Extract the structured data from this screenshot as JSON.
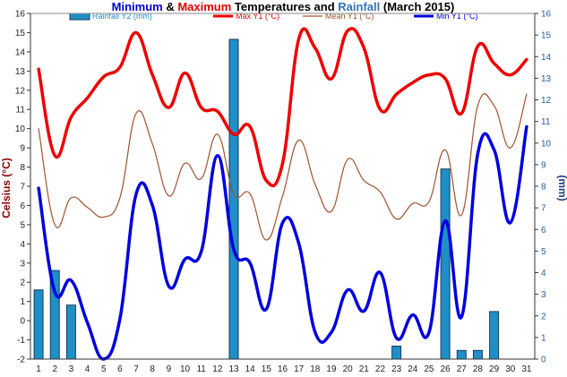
{
  "chart_data": {
    "type": "line",
    "title_parts": [
      {
        "text": "Minimum",
        "color": "#0000cc"
      },
      {
        "text": " & ",
        "color": "#000000"
      },
      {
        "text": "Maximum",
        "color": "#dd0000"
      },
      {
        "text": " Temperatures and ",
        "color": "#000000"
      },
      {
        "text": "Rainfall",
        "color": "#2e75b6"
      },
      {
        "text": " (March 2015)",
        "color": "#000000"
      }
    ],
    "ylabel_left": "Celsius (°C)",
    "ylabel_right": "(mm)",
    "ylim_left": [
      -2,
      16
    ],
    "ylim_right": [
      0,
      16
    ],
    "x": [
      1,
      2,
      3,
      4,
      5,
      6,
      7,
      8,
      9,
      10,
      11,
      12,
      13,
      14,
      15,
      16,
      17,
      18,
      19,
      20,
      21,
      22,
      23,
      24,
      25,
      26,
      27,
      28,
      29,
      30,
      31
    ],
    "x_tick_labels": [
      "1",
      "2",
      "3",
      "4",
      "5",
      "6",
      "7",
      "8",
      "9",
      "10",
      "11",
      "12",
      "13",
      "14",
      "15",
      "16",
      "17",
      "18",
      "19",
      "20",
      "21",
      "22",
      "23",
      "24",
      "25",
      "26",
      "27",
      "28",
      "29",
      "30",
      "31"
    ],
    "y_left_ticks": [
      "-2",
      "-1",
      "0",
      "1",
      "2",
      "3",
      "4",
      "5",
      "6",
      "7",
      "8",
      "9",
      "10",
      "11",
      "12",
      "13",
      "14",
      "15",
      "16"
    ],
    "y_right_ticks": [
      "0",
      "1",
      "2",
      "3",
      "4",
      "5",
      "6",
      "7",
      "8",
      "9",
      "10",
      "11",
      "12",
      "13",
      "14",
      "15",
      "16"
    ],
    "grid": false,
    "legend_position": "top",
    "series": [
      {
        "name": "Rainfall Y2 (mm)",
        "kind": "bar",
        "axis": "right",
        "color": "#1f8fc8",
        "stroke": "#1a3a5c",
        "values": [
          3.2,
          4.1,
          2.5,
          0,
          0,
          0,
          0,
          0,
          0,
          0,
          0,
          0,
          14.8,
          0,
          0,
          0,
          0,
          0,
          0,
          0,
          0,
          0,
          0.6,
          0,
          0,
          8.8,
          0.4,
          0.4,
          2.2,
          0,
          0
        ]
      },
      {
        "name": "Max Y1 (°C)",
        "kind": "line",
        "axis": "left",
        "color": "#ee0000",
        "width": 3.5,
        "values": [
          13.1,
          8.6,
          10.6,
          11.6,
          12.7,
          13.2,
          15.0,
          12.8,
          11.1,
          12.9,
          11.1,
          10.9,
          9.7,
          10.1,
          7.3,
          8.2,
          14.7,
          14.2,
          12.6,
          15.1,
          14.2,
          11.0,
          11.8,
          12.4,
          12.8,
          12.6,
          10.8,
          14.3,
          13.4,
          12.8,
          13.6
        ]
      },
      {
        "name": "Mean Y1 (°C)",
        "kind": "line",
        "axis": "left",
        "color": "#a0522d",
        "width": 1.2,
        "values": [
          10.0,
          5.0,
          6.4,
          5.9,
          5.4,
          6.4,
          10.8,
          9.2,
          6.5,
          8.2,
          7.4,
          9.7,
          6.6,
          6.6,
          4.2,
          6.5,
          9.4,
          7.1,
          5.7,
          8.4,
          7.3,
          6.7,
          5.3,
          6.1,
          6.2,
          8.9,
          5.5,
          11.2,
          11.2,
          9.0,
          11.8
        ]
      },
      {
        "name": "Min Y1 (°C)",
        "kind": "line",
        "axis": "left",
        "color": "#0000dd",
        "width": 3.5,
        "values": [
          6.9,
          1.5,
          2.1,
          -0.1,
          -2.0,
          0.1,
          6.6,
          6.0,
          1.8,
          3.2,
          3.6,
          8.6,
          3.7,
          3.0,
          0.6,
          5.1,
          4.0,
          -0.6,
          -0.6,
          1.6,
          0.5,
          2.5,
          -0.9,
          0.3,
          -0.6,
          5.2,
          0.2,
          8.7,
          8.9,
          5.1,
          10.1
        ]
      }
    ]
  }
}
